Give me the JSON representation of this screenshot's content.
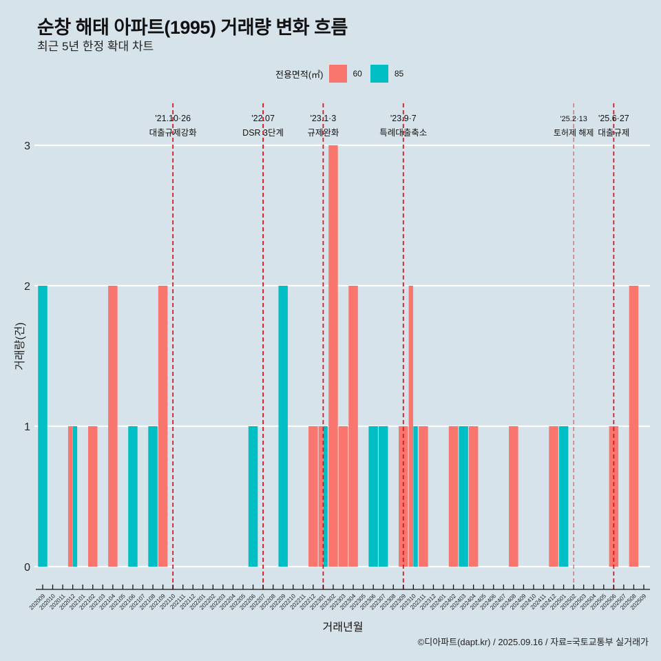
{
  "title": "순창 해태 아파트(1995) 거래량 변화 흐름",
  "subtitle": "최근 5년 한정 확대 차트",
  "caption": "©디아파트(dapt.kr) / 2025.09.16 / 자료=국토교통부 실거래가",
  "legend": {
    "title": "전용면적(㎡)",
    "items": [
      {
        "label": "60",
        "color": "#f8766d"
      },
      {
        "label": "85",
        "color": "#00bfc4"
      }
    ]
  },
  "chart_data": {
    "type": "bar",
    "title": "순창 해태 아파트(1995) 거래량 변화 흐름",
    "subtitle": "최근 5년 한정 확대 차트",
    "xlabel": "거래년월",
    "ylabel": "거래량(건)",
    "ylim": [
      0,
      3
    ],
    "yticks": [
      0,
      1,
      2,
      3
    ],
    "grid": "horizontal",
    "legend_position": "top",
    "categories": [
      "202009",
      "202010",
      "202011",
      "202012",
      "202101",
      "202102",
      "202103",
      "202104",
      "202105",
      "202106",
      "202107",
      "202108",
      "202109",
      "202110",
      "202111",
      "202112",
      "202201",
      "202202",
      "202203",
      "202204",
      "202205",
      "202206",
      "202207",
      "202208",
      "202209",
      "202210",
      "202211",
      "202212",
      "202301",
      "202302",
      "202303",
      "202304",
      "202305",
      "202306",
      "202307",
      "202308",
      "202309",
      "202310",
      "202311",
      "202312",
      "202401",
      "202402",
      "202403",
      "202404",
      "202405",
      "202406",
      "202407",
      "202408",
      "202409",
      "202410",
      "202411",
      "202412",
      "202501",
      "202502",
      "202503",
      "202504",
      "202505",
      "202506",
      "202507",
      "202508",
      "202509"
    ],
    "series": [
      {
        "name": "60",
        "color": "#f8766d",
        "points": [
          {
            "x": "202012",
            "y": 1
          },
          {
            "x": "202102",
            "y": 1
          },
          {
            "x": "202104",
            "y": 2
          },
          {
            "x": "202109",
            "y": 2
          },
          {
            "x": "202212",
            "y": 1
          },
          {
            "x": "202301",
            "y": 1
          },
          {
            "x": "202302",
            "y": 3
          },
          {
            "x": "202303",
            "y": 1
          },
          {
            "x": "202304",
            "y": 2
          },
          {
            "x": "202309",
            "y": 1
          },
          {
            "x": "202310",
            "y": 2
          },
          {
            "x": "202311",
            "y": 1
          },
          {
            "x": "202402",
            "y": 1
          },
          {
            "x": "202404",
            "y": 1
          },
          {
            "x": "202408",
            "y": 1
          },
          {
            "x": "202412",
            "y": 1
          },
          {
            "x": "202506",
            "y": 1
          },
          {
            "x": "202508",
            "y": 2
          }
        ]
      },
      {
        "name": "85",
        "color": "#00bfc4",
        "points": [
          {
            "x": "202009",
            "y": 2
          },
          {
            "x": "202012",
            "y": 1
          },
          {
            "x": "202106",
            "y": 1
          },
          {
            "x": "202108",
            "y": 1
          },
          {
            "x": "202206",
            "y": 1
          },
          {
            "x": "202209",
            "y": 2
          },
          {
            "x": "202301",
            "y": 1
          },
          {
            "x": "202306",
            "y": 1
          },
          {
            "x": "202307",
            "y": 1
          },
          {
            "x": "202310",
            "y": 1
          },
          {
            "x": "202403",
            "y": 1
          },
          {
            "x": "202501",
            "y": 1
          }
        ]
      }
    ],
    "annotations": [
      {
        "x": "202110",
        "date": "'21.10·26",
        "label": "대출규제강화",
        "style": "bold"
      },
      {
        "x": "202207",
        "date": "'22.07",
        "label": "DSR 3단계",
        "style": "bold"
      },
      {
        "x": "202301",
        "date": "'23.1·3",
        "label": "규제완화",
        "style": "bold"
      },
      {
        "x": "202309",
        "date": "'23.9·7",
        "label": "특례대출축소",
        "style": "bold"
      },
      {
        "x": "202502",
        "date": "'25.2·13",
        "label": "토허제 해제",
        "style": "light"
      },
      {
        "x": "202506",
        "date": "'25.6·27",
        "label": "대출규제",
        "style": "bold"
      }
    ]
  }
}
